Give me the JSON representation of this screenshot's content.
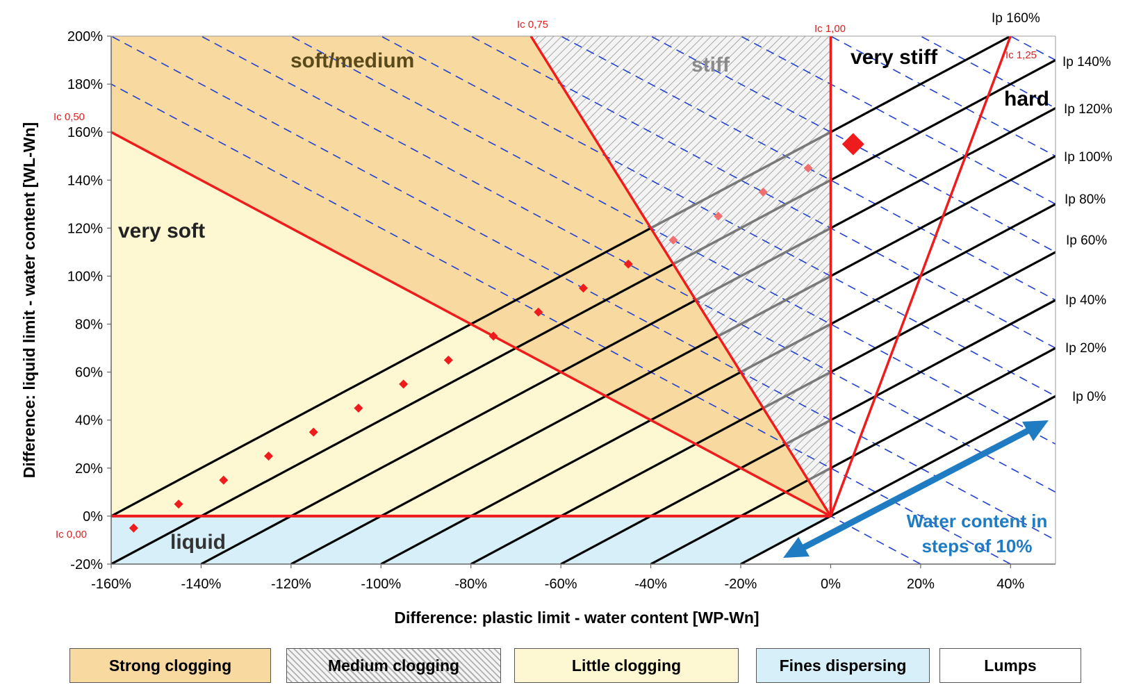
{
  "chart_data": {
    "type": "scatter",
    "xlabel": "Difference:  plastic limit - water content [WP-Wn]",
    "ylabel": "Difference:  liquid limit - water content  [WL-Wn]",
    "xlim": [
      -160,
      50
    ],
    "ylim": [
      -20,
      200
    ],
    "x_ticks": [
      "-160%",
      "-140%",
      "-120%",
      "-100%",
      "-80%",
      "-60%",
      "-40%",
      "-20%",
      "0%",
      "20%",
      "40%"
    ],
    "y_ticks": [
      "-20%",
      "0%",
      "20%",
      "40%",
      "60%",
      "80%",
      "100%",
      "120%",
      "140%",
      "160%",
      "180%",
      "200%"
    ],
    "consistency_lines": [
      {
        "label": "Ic 0,00",
        "ic": 0.0
      },
      {
        "label": "Ic 0,50",
        "ic": 0.5
      },
      {
        "label": "Ic 0,75",
        "ic": 0.75
      },
      {
        "label": "Ic 1,00",
        "ic": 1.0
      },
      {
        "label": "Ic 1,25",
        "ic": 1.25
      }
    ],
    "plasticity_lines": [
      {
        "label": "Ip 0%",
        "ip": 0
      },
      {
        "label": "Ip 20%",
        "ip": 20
      },
      {
        "label": "Ip 40%",
        "ip": 40
      },
      {
        "label": "Ip 60%",
        "ip": 60
      },
      {
        "label": "Ip 80%",
        "ip": 80
      },
      {
        "label": "Ip 100%",
        "ip": 100
      },
      {
        "label": "Ip 120%",
        "ip": 120
      },
      {
        "label": "Ip 140%",
        "ip": 140
      },
      {
        "label": "Ip 160%",
        "ip": 160
      }
    ],
    "water_content_step": 10,
    "regions": [
      {
        "label": "soft/medium",
        "class": "Strong clogging"
      },
      {
        "label": "stiff",
        "class": "Medium clogging"
      },
      {
        "label": "very stiff",
        "class": "Lumps"
      },
      {
        "label": "hard",
        "class": "Lumps"
      },
      {
        "label": "very soft",
        "class": "Little clogging"
      },
      {
        "label": "liquid",
        "class": "Fines dispersing"
      }
    ],
    "points": {
      "x": [
        -155,
        -145,
        -135,
        -125,
        -115,
        -105,
        -95,
        -85,
        -75,
        -65,
        -55,
        -45,
        -35,
        -25,
        -15,
        -5,
        5
      ],
      "y": [
        -5,
        5,
        15,
        25,
        35,
        45,
        55,
        65,
        75,
        85,
        95,
        105,
        115,
        125,
        135,
        145,
        155
      ]
    },
    "annotation": "Water content in steps of 10%",
    "legend": [
      "Strong clogging",
      "Medium clogging",
      "Little clogging",
      "Fines dispersing",
      "Lumps"
    ],
    "colors": {
      "strong": "#f8d9a0",
      "little": "#fdf7d2",
      "fines": "#d6eff8",
      "ic_line": "#ee1c1c",
      "ip_line": "#000000",
      "water_line": "#1f3fd0",
      "arrow": "#1f7cc3"
    }
  },
  "labels": {
    "ic_000": "Ic 0,00",
    "ic_050": "Ic 0,50",
    "ic_075": "Ic 0,75",
    "ic_100": "Ic 1,00",
    "ic_125": "Ic 1,25",
    "ip": [
      "Ip 160%",
      "Ip 140%",
      "Ip 120%",
      "Ip 100%",
      "Ip 80%",
      "Ip 60%",
      "Ip 40%",
      "Ip 20%",
      "Ip 0%"
    ],
    "soft_medium": "soft/medium",
    "stiff": "stiff",
    "very_stiff": "very stiff",
    "hard": "hard",
    "very_soft": "very soft",
    "liquid": "liquid",
    "water_1": "Water content in",
    "water_2": "steps of 10%"
  }
}
